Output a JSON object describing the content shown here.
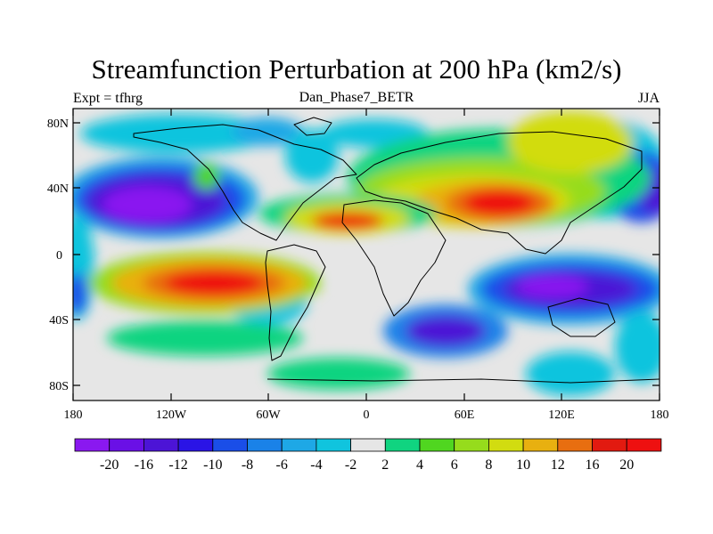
{
  "title": "Streamfunction Perturbation at 200 hPa (km2/s)",
  "left_label": "Expt = tfhrg",
  "center_label": "Dan_Phase7_BETR",
  "right_label": "JJA",
  "lat_ticks": [
    "80N",
    "40N",
    "0",
    "40S",
    "80S"
  ],
  "lon_ticks": [
    "180",
    "120W",
    "60W",
    "0",
    "60E",
    "120E",
    "180"
  ],
  "colorbar": {
    "labels": [
      "-20",
      "-16",
      "-12",
      "-10",
      "-8",
      "-6",
      "-4",
      "-2",
      "2",
      "4",
      "6",
      "8",
      "10",
      "12",
      "16",
      "20"
    ],
    "colors": [
      "#8a18f0",
      "#6a10e6",
      "#4c14d6",
      "#2a14e6",
      "#1a4ee8",
      "#1a82e8",
      "#1ea8e6",
      "#10c4de",
      "#e6e6e6",
      "#10d480",
      "#50d620",
      "#96dc1c",
      "#d2dc10",
      "#e8b010",
      "#e86e10",
      "#e21a10",
      "#ee1010"
    ]
  },
  "colors": {
    "background": "#ffffff",
    "land_fill": "#e6e6e6",
    "coastline": "#000000"
  }
}
